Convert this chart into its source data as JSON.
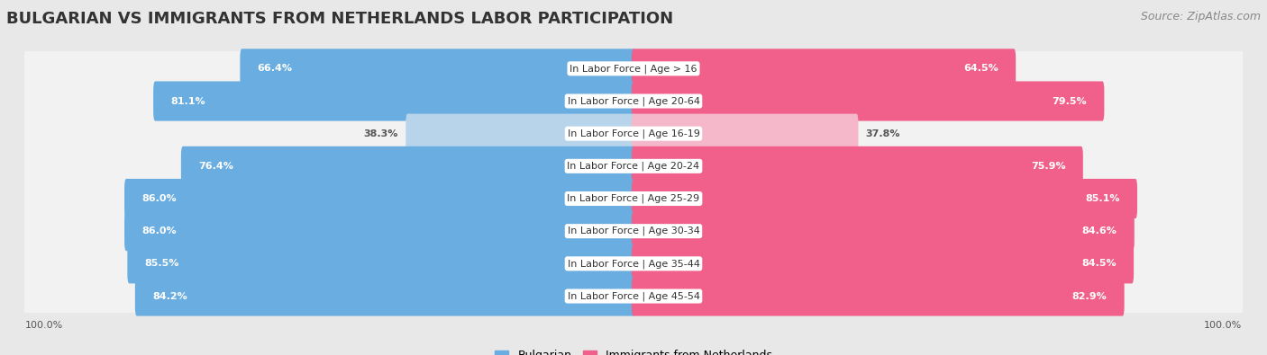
{
  "title": "BULGARIAN VS IMMIGRANTS FROM NETHERLANDS LABOR PARTICIPATION",
  "source": "Source: ZipAtlas.com",
  "categories": [
    "In Labor Force | Age > 16",
    "In Labor Force | Age 20-64",
    "In Labor Force | Age 16-19",
    "In Labor Force | Age 20-24",
    "In Labor Force | Age 25-29",
    "In Labor Force | Age 30-34",
    "In Labor Force | Age 35-44",
    "In Labor Force | Age 45-54"
  ],
  "bulgarian_values": [
    66.4,
    81.1,
    38.3,
    76.4,
    86.0,
    86.0,
    85.5,
    84.2
  ],
  "netherlands_values": [
    64.5,
    79.5,
    37.8,
    75.9,
    85.1,
    84.6,
    84.5,
    82.9
  ],
  "bulgarian_color": "#6aade0",
  "bulgarian_light_color": "#b8d4ea",
  "netherlands_color": "#f0608a",
  "netherlands_light_color": "#f5b8cb",
  "background_color": "#e8e8e8",
  "row_bg_color": "#f2f2f2",
  "title_fontsize": 13,
  "source_fontsize": 9,
  "label_fontsize": 8,
  "value_fontsize": 8,
  "max_value": 100.0,
  "legend_bulgarian": "Bulgarian",
  "legend_netherlands": "Immigrants from Netherlands"
}
